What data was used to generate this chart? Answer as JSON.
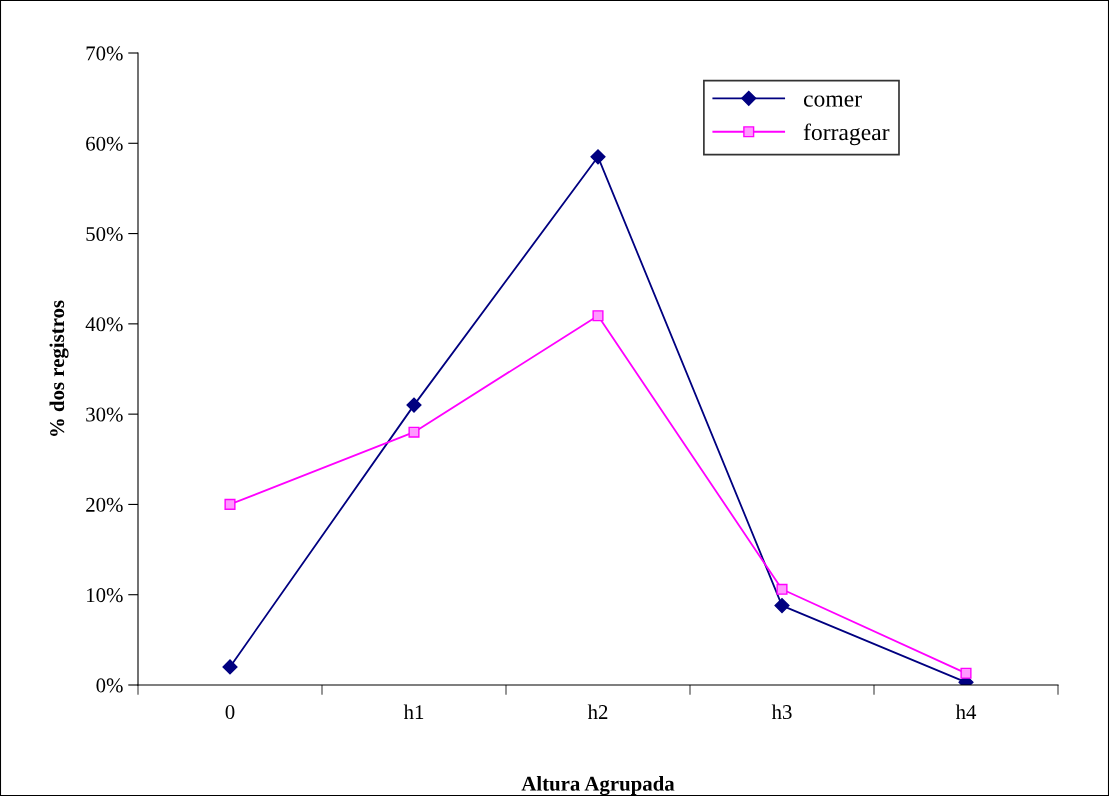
{
  "chart_data": {
    "type": "line",
    "xlabel": "Altura Agrupada",
    "ylabel": "% dos registros",
    "categories": [
      "0",
      "h1",
      "h2",
      "h3",
      "h4"
    ],
    "series": [
      {
        "name": "comer",
        "color": "#000080",
        "marker": "diamond",
        "values": [
          2,
          31,
          58.5,
          8.8,
          0.3
        ]
      },
      {
        "name": "forragear",
        "color": "#ff00ff",
        "marker": "square",
        "values": [
          20,
          28,
          40.9,
          10.6,
          1.3
        ]
      }
    ],
    "ylim": [
      0,
      70
    ],
    "yticks": [
      {
        "value": 0,
        "label": "0%"
      },
      {
        "value": 10,
        "label": "10%"
      },
      {
        "value": 20,
        "label": "20%"
      },
      {
        "value": 30,
        "label": "30%"
      },
      {
        "value": 40,
        "label": "40%"
      },
      {
        "value": 50,
        "label": "50%"
      },
      {
        "value": 60,
        "label": "60%"
      },
      {
        "value": 70,
        "label": "70%"
      }
    ],
    "grid": false,
    "legend": "top right",
    "line_style": "solid"
  }
}
